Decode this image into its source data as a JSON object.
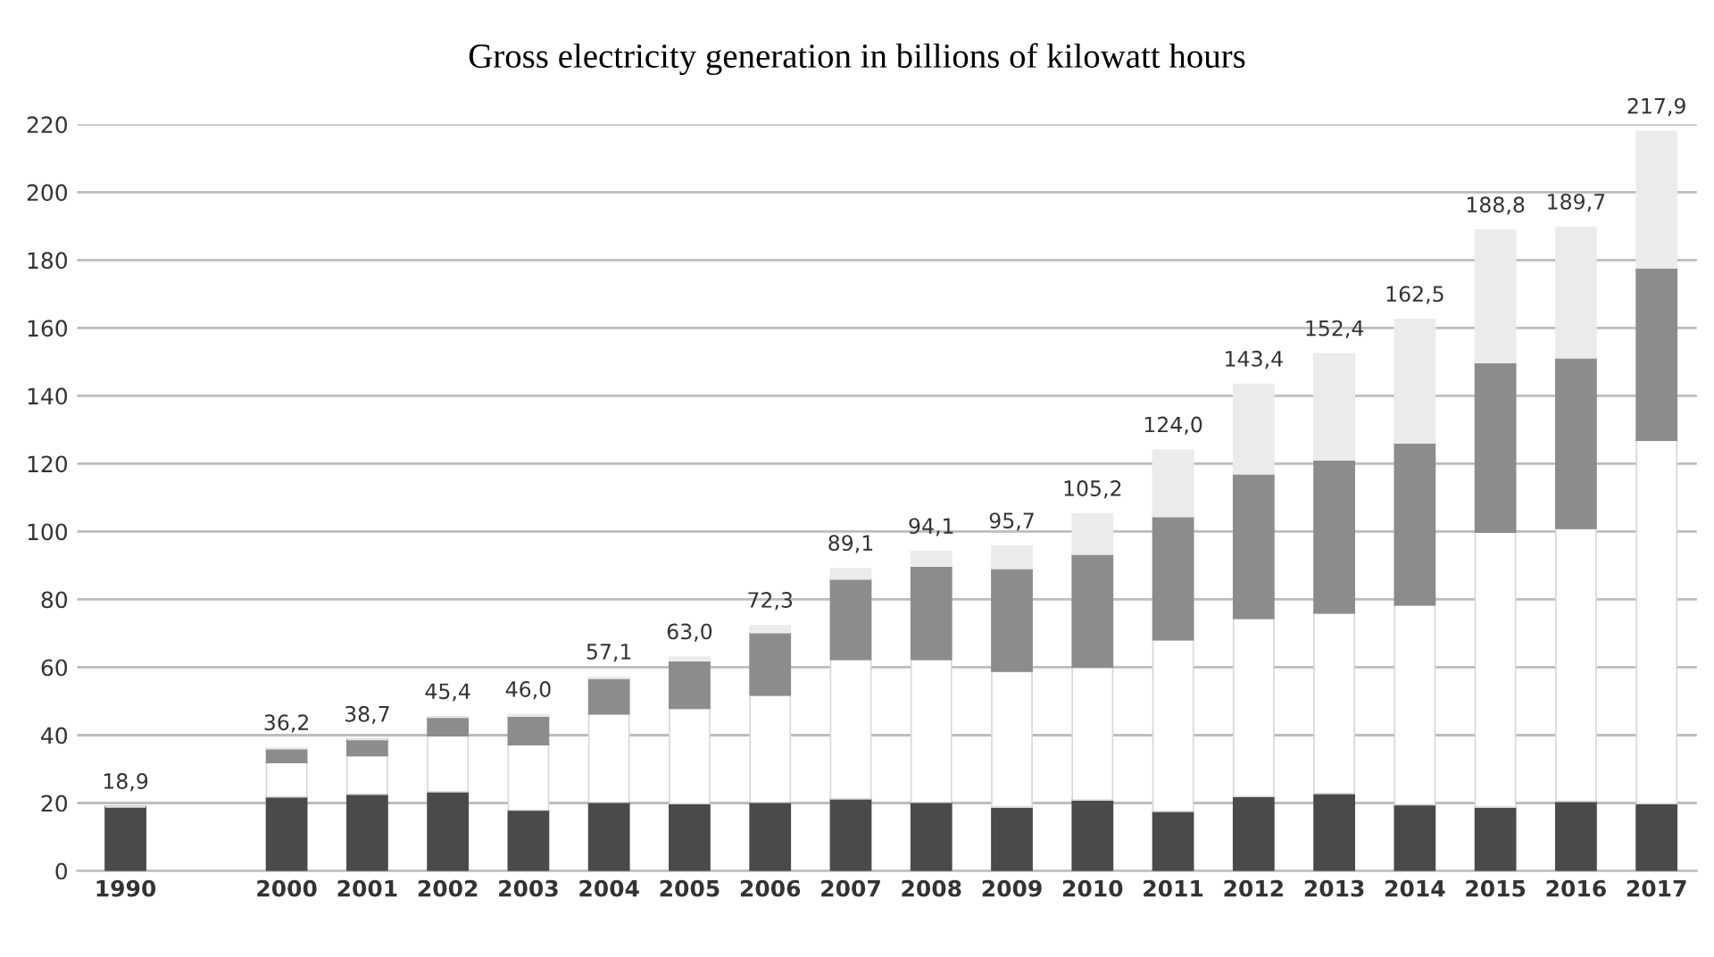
{
  "chart_data": {
    "type": "bar",
    "title": "Gross electricity generation in billions of kilowatt hours",
    "stacked": true,
    "categories": [
      "1990",
      null,
      "2000",
      "2001",
      "2002",
      "2003",
      "2004",
      "2005",
      "2006",
      "2007",
      "2008",
      "2009",
      "2010",
      "2011",
      "2012",
      "2013",
      "2014",
      "2015",
      "2016",
      "2017"
    ],
    "series": [
      {
        "color": "#4a4a4a",
        "values": [
          18.9,
          null,
          21.8,
          22.6,
          23.3,
          17.9,
          20.2,
          19.8,
          20.2,
          21.2,
          20.2,
          18.8,
          20.9,
          17.5,
          21.9,
          22.8,
          19.5,
          18.8,
          20.5,
          19.8
        ]
      },
      {
        "color": "#ffffff",
        "values": [
          0,
          null,
          10.1,
          11.4,
          16.5,
          19.3,
          26.1,
          28.1,
          31.6,
          41.1,
          42.1,
          40.0,
          39.1,
          50.6,
          52.5,
          53.2,
          58.9,
          81.0,
          80.4,
          107.1
        ]
      },
      {
        "color": "#8c8c8c",
        "values": [
          0,
          null,
          4.1,
          4.7,
          5.5,
          8.4,
          10.4,
          14.0,
          18.4,
          23.7,
          27.5,
          30.3,
          33.3,
          36.3,
          42.6,
          45.1,
          47.7,
          50.0,
          50.3,
          50.8
        ]
      },
      {
        "color": "#ebebeb",
        "values": [
          0,
          null,
          0.2,
          0,
          0.1,
          0.4,
          0.4,
          1.1,
          2.1,
          3.1,
          4.3,
          6.6,
          11.9,
          19.6,
          26.4,
          31.3,
          36.4,
          39.0,
          38.5,
          40.2
        ]
      }
    ],
    "totals": [
      "18,9",
      null,
      "36,2",
      "38,7",
      "45,4",
      "46,0",
      "57,1",
      "63,0",
      "72,3",
      "89,1",
      "94,1",
      "95,7",
      "105,2",
      "124,0",
      "143,4",
      "152,4",
      "162,5",
      "188,8",
      "189,7",
      "217,9"
    ],
    "ylim": [
      0,
      220
    ],
    "yticks": [
      0,
      20,
      40,
      60,
      80,
      100,
      120,
      140,
      160,
      180,
      200,
      220
    ],
    "grid": "y",
    "legend": false
  }
}
